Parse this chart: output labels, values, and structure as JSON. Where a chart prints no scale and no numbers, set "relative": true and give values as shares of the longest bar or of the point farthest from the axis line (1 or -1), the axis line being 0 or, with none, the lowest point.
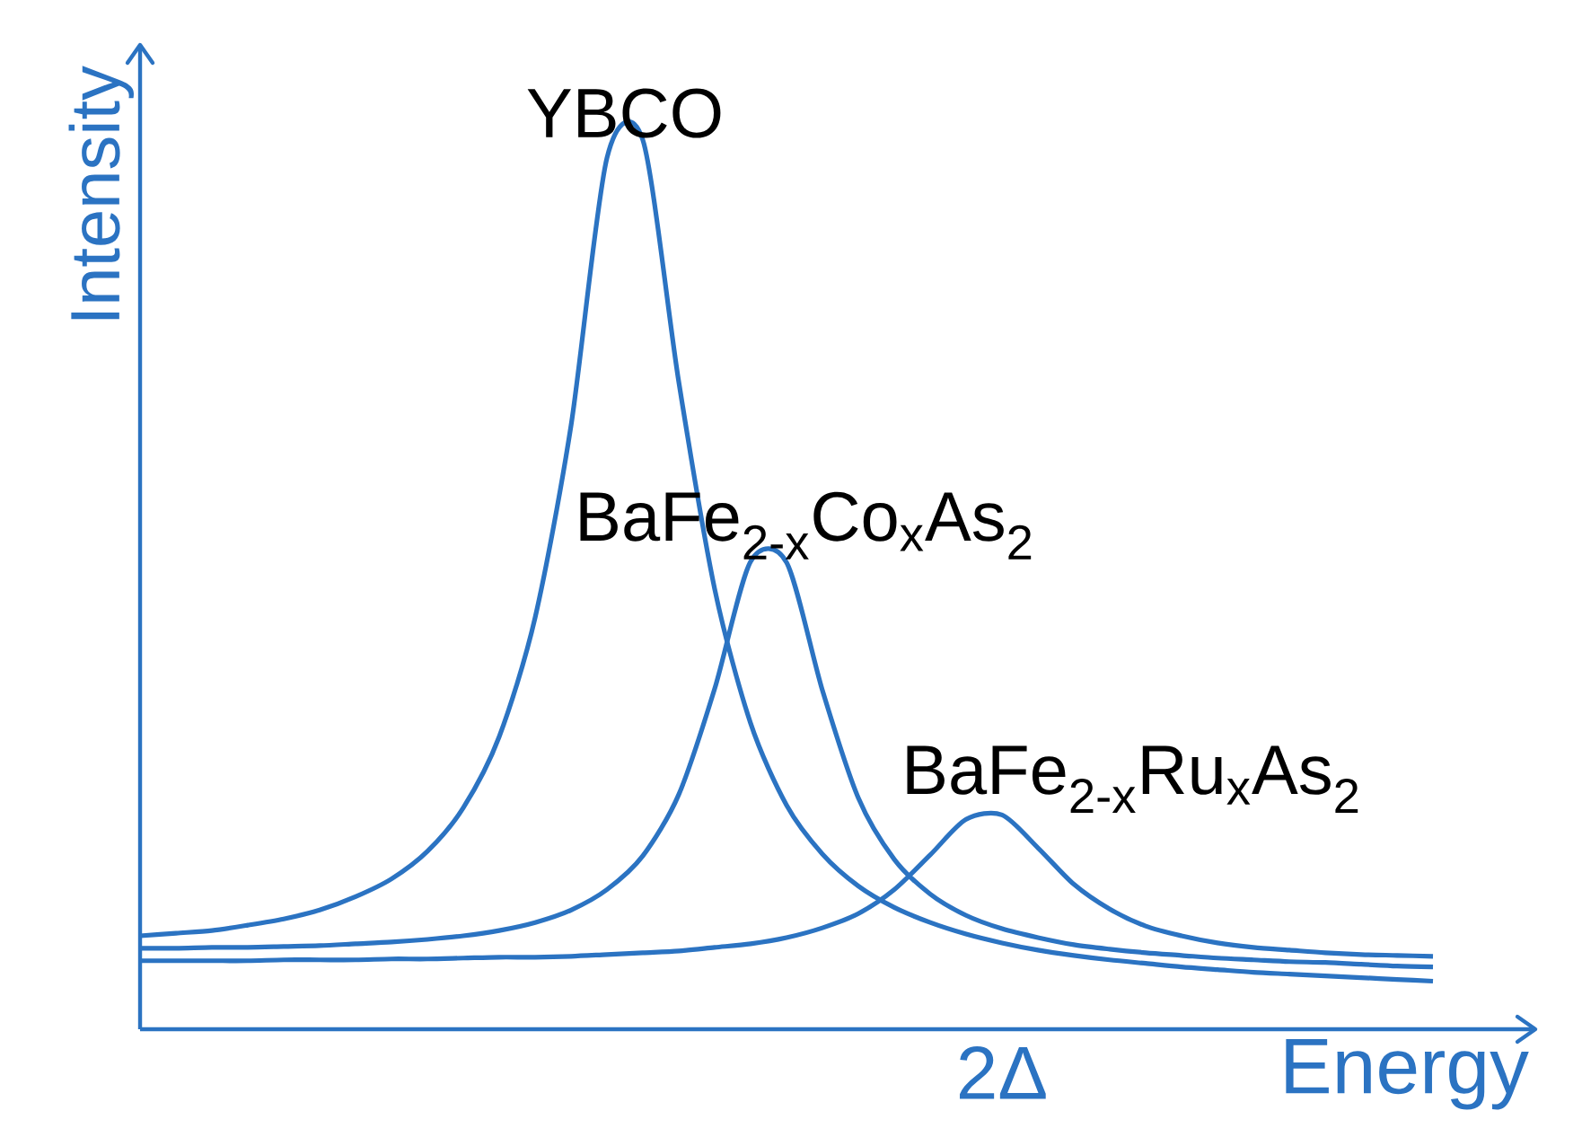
{
  "chart_data": {
    "type": "line",
    "relative": true,
    "xlabel": "Energy",
    "ylabel": "Intensity",
    "categories": [
      null,
      null,
      null,
      null,
      null,
      null,
      null,
      null,
      null,
      null,
      null,
      null,
      null,
      null,
      null,
      null,
      null,
      null,
      null,
      null,
      null,
      null,
      null,
      null,
      null,
      null,
      null,
      null,
      null,
      null,
      null,
      null,
      null,
      null,
      null,
      null,
      null
    ],
    "series": [
      {
        "name": "YBCO",
        "color": "#2b73c2",
        "values": [
          0.105,
          0.108,
          0.111,
          0.117,
          0.124,
          0.134,
          0.149,
          0.169,
          0.2,
          0.249,
          0.329,
          0.463,
          0.679,
          0.98,
          1.0,
          0.728,
          0.495,
          0.344,
          0.252,
          0.197,
          0.161,
          0.137,
          0.12,
          0.107,
          0.097,
          0.089,
          0.083,
          0.078,
          0.074,
          0.07,
          0.067,
          0.064,
          0.062,
          0.06,
          0.058,
          0.056,
          0.054
        ]
      },
      {
        "name": "BaFe$_{2-x}$Co$_{x}$As$_{2}$",
        "color": "#2b73c2",
        "values": [
          0.091,
          0.091,
          0.092,
          0.092,
          0.093,
          0.094,
          0.096,
          0.098,
          0.101,
          0.105,
          0.111,
          0.12,
          0.134,
          0.157,
          0.195,
          0.264,
          0.383,
          0.526,
          0.525,
          0.381,
          0.26,
          0.191,
          0.152,
          0.128,
          0.113,
          0.103,
          0.095,
          0.09,
          0.086,
          0.083,
          0.08,
          0.078,
          0.076,
          0.075,
          0.073,
          0.071,
          0.07
        ]
      },
      {
        "name": "BaFe$_{2-x}$Ru$_{x}$As$_{2}$",
        "color": "#2b73c2",
        "values": [
          0.077,
          0.077,
          0.077,
          0.077,
          0.078,
          0.078,
          0.078,
          0.079,
          0.079,
          0.08,
          0.081,
          0.081,
          0.082,
          0.084,
          0.086,
          0.088,
          0.092,
          0.096,
          0.103,
          0.114,
          0.13,
          0.157,
          0.196,
          0.236,
          0.241,
          0.204,
          0.163,
          0.135,
          0.116,
          0.105,
          0.097,
          0.092,
          0.089,
          0.086,
          0.084,
          0.083,
          0.082
        ]
      }
    ],
    "annotations": [
      "2Δ"
    ],
    "marker": "none",
    "line_style": "solid"
  }
}
